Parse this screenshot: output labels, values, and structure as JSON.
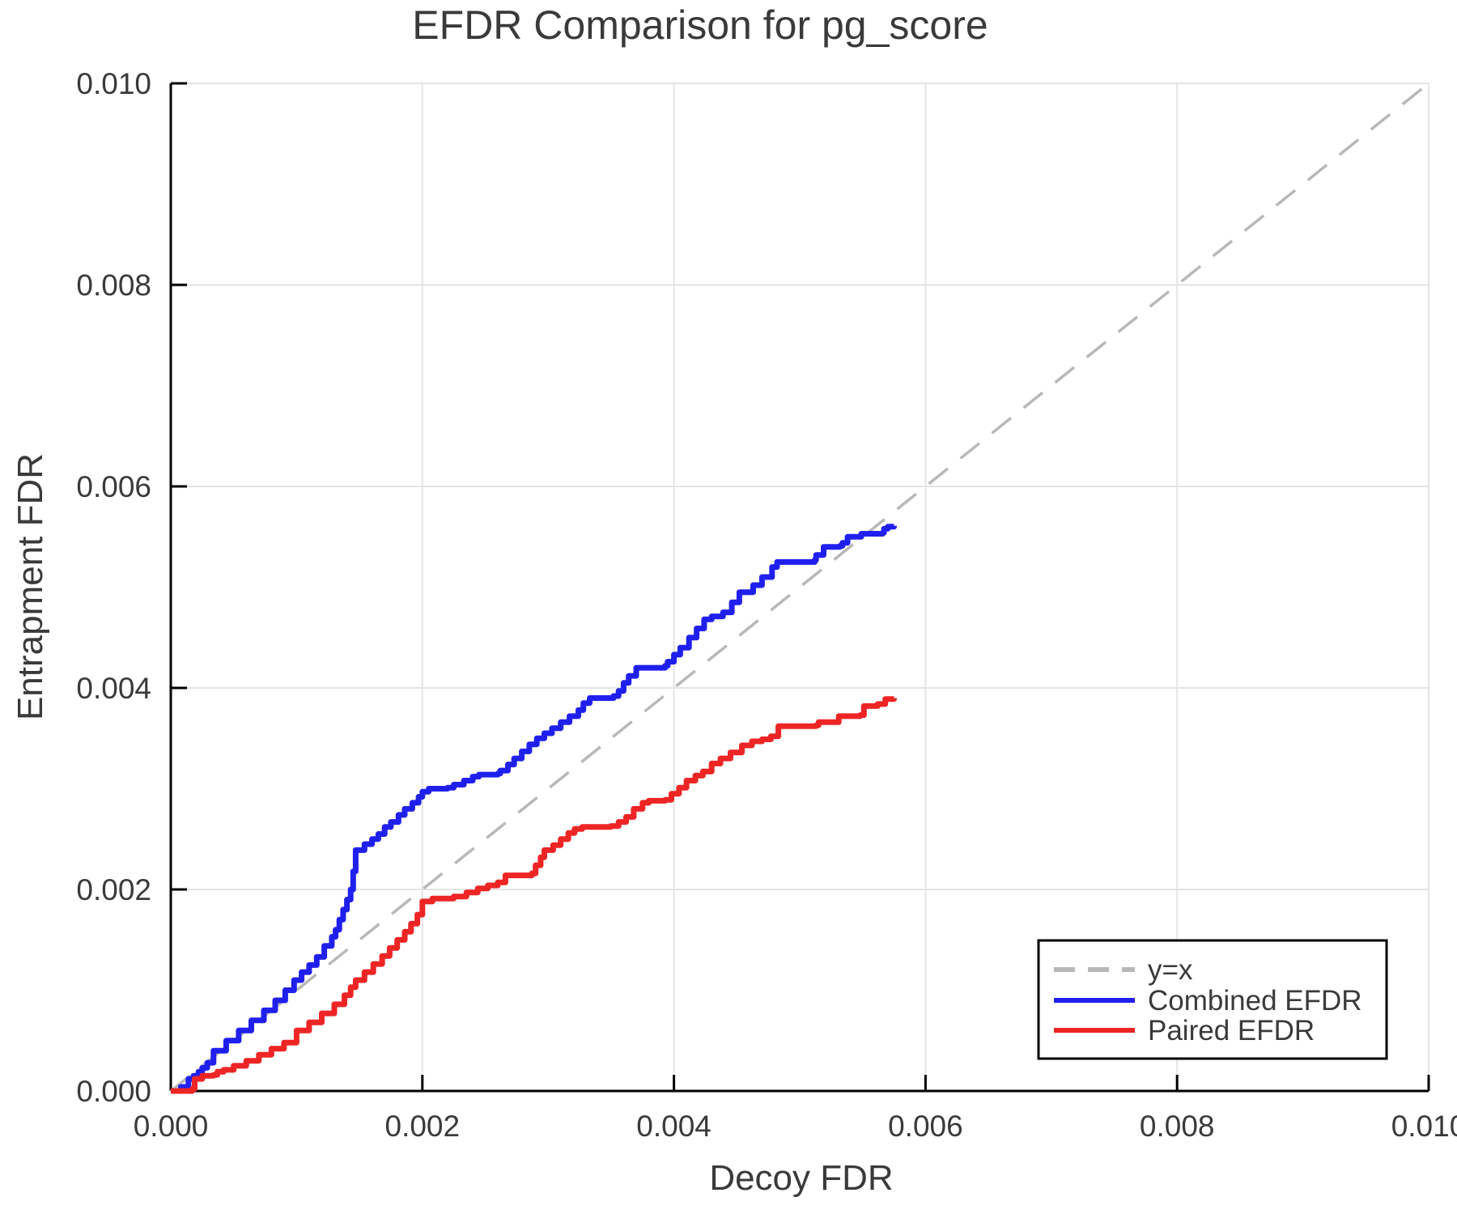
{
  "figure": {
    "title": "EFDR Comparison for pg_score",
    "xlabel": "Decoy FDR",
    "ylabel": "Entrapment FDR"
  },
  "colors": {
    "combined": "#2020ee",
    "paired": "#ee2525",
    "reference": "#b8b8b8",
    "grid": "#e4e4e4",
    "axis": "#000000",
    "text": "#3a3a3a"
  },
  "chart_data": {
    "type": "line",
    "title": "EFDR Comparison for pg_score",
    "xlabel": "Decoy FDR",
    "ylabel": "Entrapment FDR",
    "xlim": [
      0.0,
      0.01
    ],
    "ylim": [
      0.0,
      0.01
    ],
    "x_ticks": [
      0.0,
      0.002,
      0.004,
      0.006,
      0.008,
      0.01
    ],
    "y_ticks": [
      0.0,
      0.002,
      0.004,
      0.006,
      0.008,
      0.01
    ],
    "x_tick_labels": [
      "0.000",
      "0.002",
      "0.004",
      "0.006",
      "0.008",
      "0.010"
    ],
    "y_tick_labels": [
      "0.000",
      "0.002",
      "0.004",
      "0.006",
      "0.008",
      "0.010"
    ],
    "grid": true,
    "legend_position": "lower right",
    "reference_line": {
      "label": "y=x",
      "style": "dashed",
      "color": "#b8b8b8",
      "from": [
        0.0,
        0.0
      ],
      "to": [
        0.01,
        0.01
      ]
    },
    "series": [
      {
        "name": "Combined EFDR",
        "color": "#2020ee",
        "step": "post",
        "points": [
          [
            0,
            0
          ],
          [
            8e-05,
            4e-05
          ],
          [
            0.00014,
            0.00012
          ],
          [
            0.00018,
            0.00015
          ],
          [
            0.00022,
            0.00019
          ],
          [
            0.00025,
            0.00023
          ],
          [
            0.00029,
            0.00028
          ],
          [
            0.00034,
            0.0004
          ],
          [
            0.00044,
            0.0005
          ],
          [
            0.00054,
            0.0006
          ],
          [
            0.00064,
            0.0007
          ],
          [
            0.00074,
            0.0008
          ],
          [
            0.00083,
            0.0009
          ],
          [
            0.00091,
            0.001
          ],
          [
            0.00098,
            0.0011
          ],
          [
            0.00104,
            0.00118
          ],
          [
            0.0011,
            0.00125
          ],
          [
            0.00116,
            0.00133
          ],
          [
            0.00122,
            0.00144
          ],
          [
            0.00128,
            0.00153
          ],
          [
            0.00131,
            0.0016
          ],
          [
            0.00134,
            0.0017
          ],
          [
            0.00137,
            0.0018
          ],
          [
            0.0014,
            0.0019
          ],
          [
            0.00143,
            0.002
          ],
          [
            0.00145,
            0.00218
          ],
          [
            0.00147,
            0.00239
          ],
          [
            0.00154,
            0.00245
          ],
          [
            0.0016,
            0.0025
          ],
          [
            0.00165,
            0.00255
          ],
          [
            0.0017,
            0.00262
          ],
          [
            0.00175,
            0.00267
          ],
          [
            0.00181,
            0.00274
          ],
          [
            0.00186,
            0.0028
          ],
          [
            0.00192,
            0.00286
          ],
          [
            0.00197,
            0.00292
          ],
          [
            0.002,
            0.00297
          ],
          [
            0.00205,
            0.003
          ],
          [
            0.0022,
            0.00301
          ],
          [
            0.00225,
            0.00304
          ],
          [
            0.00233,
            0.00308
          ],
          [
            0.0024,
            0.00312
          ],
          [
            0.00245,
            0.00314
          ],
          [
            0.0026,
            0.00315
          ],
          [
            0.00262,
            0.00318
          ],
          [
            0.00268,
            0.00324
          ],
          [
            0.00273,
            0.0033
          ],
          [
            0.00279,
            0.00337
          ],
          [
            0.00285,
            0.00344
          ],
          [
            0.00291,
            0.0035
          ],
          [
            0.00297,
            0.00355
          ],
          [
            0.00303,
            0.0036
          ],
          [
            0.0031,
            0.00366
          ],
          [
            0.00317,
            0.00372
          ],
          [
            0.00324,
            0.00378
          ],
          [
            0.00328,
            0.00385
          ],
          [
            0.00333,
            0.0039
          ],
          [
            0.00352,
            0.00392
          ],
          [
            0.00356,
            0.00397
          ],
          [
            0.0036,
            0.00405
          ],
          [
            0.00364,
            0.00412
          ],
          [
            0.0037,
            0.0042
          ],
          [
            0.00393,
            0.00422
          ],
          [
            0.00395,
            0.00426
          ],
          [
            0.004,
            0.00433
          ],
          [
            0.00405,
            0.0044
          ],
          [
            0.00412,
            0.0045
          ],
          [
            0.00418,
            0.00459
          ],
          [
            0.00424,
            0.00468
          ],
          [
            0.0043,
            0.00471
          ],
          [
            0.00439,
            0.00475
          ],
          [
            0.00446,
            0.00485
          ],
          [
            0.00452,
            0.00495
          ],
          [
            0.00463,
            0.00502
          ],
          [
            0.0047,
            0.0051
          ],
          [
            0.00478,
            0.0052
          ],
          [
            0.00482,
            0.00525
          ],
          [
            0.00512,
            0.00527
          ],
          [
            0.00513,
            0.00532
          ],
          [
            0.00519,
            0.0054
          ],
          [
            0.00532,
            0.00541
          ],
          [
            0.00534,
            0.00544
          ],
          [
            0.00538,
            0.0055
          ],
          [
            0.00549,
            0.00553
          ],
          [
            0.00566,
            0.00554
          ],
          [
            0.00567,
            0.00558
          ],
          [
            0.0057,
            0.0056
          ],
          [
            0.00575,
            0.00561
          ]
        ]
      },
      {
        "name": "Paired EFDR",
        "color": "#ee2525",
        "step": "post",
        "points": [
          [
            0,
            0
          ],
          [
            0.00017,
            2e-05
          ],
          [
            0.00019,
            0.00012
          ],
          [
            0.00025,
            0.00015
          ],
          [
            0.00034,
            0.00016
          ],
          [
            0.00037,
            0.00019
          ],
          [
            0.00042,
            0.00021
          ],
          [
            0.0005,
            0.00025
          ],
          [
            0.0006,
            0.0003
          ],
          [
            0.0007,
            0.00036
          ],
          [
            0.0008,
            0.00042
          ],
          [
            0.0009,
            0.00048
          ],
          [
            0.001,
            0.0006
          ],
          [
            0.0011,
            0.00068
          ],
          [
            0.0012,
            0.00077
          ],
          [
            0.0013,
            0.00086
          ],
          [
            0.00138,
            0.00095
          ],
          [
            0.00143,
            0.00103
          ],
          [
            0.00147,
            0.0011
          ],
          [
            0.00154,
            0.00118
          ],
          [
            0.00161,
            0.00126
          ],
          [
            0.00168,
            0.00134
          ],
          [
            0.00174,
            0.00142
          ],
          [
            0.0018,
            0.0015
          ],
          [
            0.00186,
            0.00158
          ],
          [
            0.00191,
            0.00166
          ],
          [
            0.00196,
            0.00175
          ],
          [
            0.002,
            0.00188
          ],
          [
            0.00208,
            0.00191
          ],
          [
            0.00225,
            0.00193
          ],
          [
            0.00235,
            0.00197
          ],
          [
            0.00244,
            0.00201
          ],
          [
            0.00252,
            0.00204
          ],
          [
            0.0026,
            0.00207
          ],
          [
            0.00266,
            0.00214
          ],
          [
            0.00287,
            0.00216
          ],
          [
            0.0029,
            0.00224
          ],
          [
            0.00294,
            0.00232
          ],
          [
            0.00297,
            0.00239
          ],
          [
            0.00304,
            0.00244
          ],
          [
            0.0031,
            0.0025
          ],
          [
            0.00316,
            0.00256
          ],
          [
            0.00321,
            0.0026
          ],
          [
            0.00327,
            0.00262
          ],
          [
            0.0035,
            0.00263
          ],
          [
            0.00356,
            0.00267
          ],
          [
            0.00362,
            0.00272
          ],
          [
            0.00368,
            0.0028
          ],
          [
            0.00375,
            0.00286
          ],
          [
            0.0038,
            0.00288
          ],
          [
            0.00393,
            0.00289
          ],
          [
            0.00398,
            0.00295
          ],
          [
            0.00404,
            0.00301
          ],
          [
            0.0041,
            0.00308
          ],
          [
            0.00417,
            0.00313
          ],
          [
            0.00423,
            0.00317
          ],
          [
            0.0043,
            0.00325
          ],
          [
            0.00437,
            0.0033
          ],
          [
            0.00445,
            0.00336
          ],
          [
            0.00454,
            0.00343
          ],
          [
            0.00462,
            0.00347
          ],
          [
            0.0047,
            0.00349
          ],
          [
            0.00477,
            0.00352
          ],
          [
            0.00483,
            0.00362
          ],
          [
            0.00513,
            0.00363
          ],
          [
            0.00515,
            0.00366
          ],
          [
            0.00531,
            0.00372
          ],
          [
            0.00548,
            0.00373
          ],
          [
            0.00551,
            0.00382
          ],
          [
            0.00562,
            0.00384
          ],
          [
            0.00568,
            0.00389
          ],
          [
            0.00575,
            0.0039
          ]
        ]
      }
    ]
  },
  "legend": {
    "entries": [
      {
        "label": "y=x",
        "style": "dashed",
        "color": "#b8b8b8"
      },
      {
        "label": "Combined EFDR",
        "style": "solid",
        "color": "#2020ee"
      },
      {
        "label": "Paired EFDR",
        "style": "solid",
        "color": "#ee2525"
      }
    ]
  }
}
